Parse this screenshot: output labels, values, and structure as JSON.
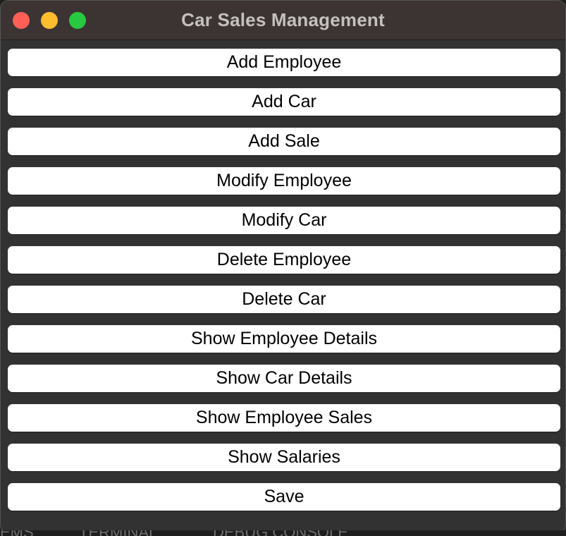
{
  "window": {
    "title": "Car Sales Management",
    "controls": [
      {
        "name": "close",
        "color": "#ff5f57"
      },
      {
        "name": "minimize",
        "color": "#febc2e"
      },
      {
        "name": "zoom",
        "color": "#28c840"
      }
    ]
  },
  "menu": {
    "buttons": [
      "Add Employee",
      "Add Car",
      "Add Sale",
      "Modify Employee",
      "Modify Car",
      "Delete Employee",
      "Delete Car",
      "Show Employee Details",
      "Show Car Details",
      "Show Employee Sales",
      "Show Salaries",
      "Save"
    ]
  },
  "background_panel": {
    "tabs": [
      "EMS",
      "TERMINAL",
      "DEBUG CONSOLE"
    ]
  }
}
